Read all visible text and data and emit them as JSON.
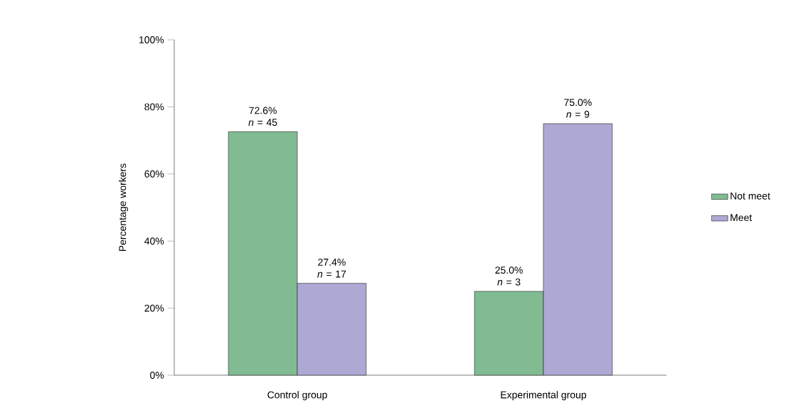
{
  "chart_data": {
    "type": "bar",
    "ylabel": "Percentage workers",
    "categories": [
      "Control group",
      "Experimental group"
    ],
    "series": [
      {
        "name": "Not meet",
        "color": "#80bb92",
        "values": [
          72.6,
          25.0
        ],
        "value_labels": [
          "72.6% *n* = 45",
          "25.0% *n* = 3"
        ]
      },
      {
        "name": "Meet",
        "color": "#ada8d4",
        "values": [
          27.4,
          75.0
        ],
        "value_labels": [
          "27.4% *n* = 17",
          "75.0% *n* = 9"
        ]
      }
    ],
    "ylim": [
      0,
      100
    ],
    "yticks": [
      {
        "value": 0,
        "label": "0%"
      },
      {
        "value": 20,
        "label": "20%"
      },
      {
        "value": 40,
        "label": "40%"
      },
      {
        "value": 60,
        "label": "60%"
      },
      {
        "value": 80,
        "label": "80%"
      },
      {
        "value": 100,
        "label": "100%"
      }
    ],
    "legend": "right",
    "grid": false
  }
}
